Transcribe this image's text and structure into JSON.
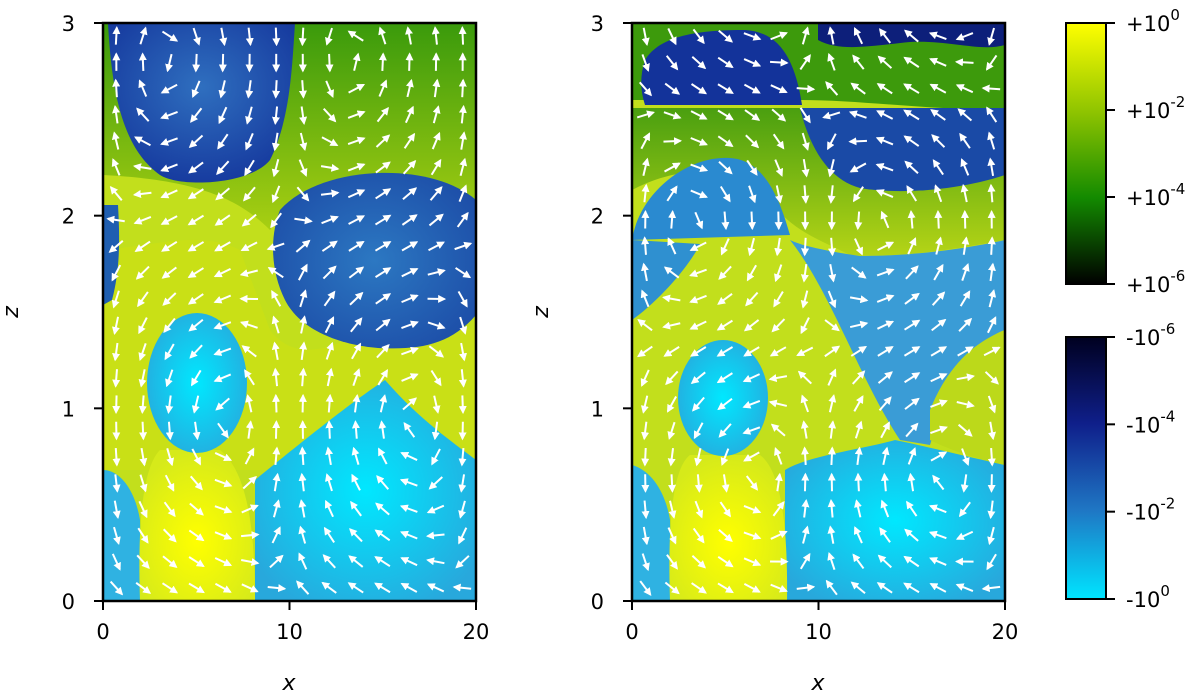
{
  "chart_data": [
    {
      "type": "heatmap",
      "title": "",
      "xlabel": "x",
      "ylabel": "z",
      "xlim": [
        0,
        20
      ],
      "ylim": [
        0,
        3
      ],
      "xticks": [
        0,
        10,
        20
      ],
      "yticks": [
        0,
        1,
        2,
        3
      ],
      "xtick_labels": [
        "0",
        "10",
        "20"
      ],
      "ytick_labels": [
        "0",
        "1",
        "2",
        "3"
      ],
      "grid": false,
      "cells": [
        {
          "x": 5,
          "z": 0.4,
          "sign": "positive",
          "level": 0
        },
        {
          "x": 15,
          "z": 0.45,
          "sign": "negative",
          "level": -1.5
        },
        {
          "x": 1,
          "z": 0.5,
          "sign": "negative",
          "level": -1.5
        },
        {
          "x": 5,
          "z": 1.15,
          "sign": "negative",
          "level": -1.5
        },
        {
          "x": 15,
          "z": 1.85,
          "sign": "negative",
          "level": -3.5
        },
        {
          "x": 5,
          "z": 2.7,
          "sign": "negative",
          "level": -3.5
        },
        {
          "x": 15,
          "z": 2.7,
          "sign": "positive",
          "level": -3
        },
        {
          "x": 5,
          "z": 1.75,
          "sign": "positive",
          "level": -1.5
        }
      ],
      "vectors": "flow-field (white arrows)"
    },
    {
      "type": "heatmap",
      "title": "",
      "xlabel": "x",
      "ylabel": "z",
      "xlim": [
        0,
        20
      ],
      "ylim": [
        0,
        3
      ],
      "xticks": [
        0,
        10,
        20
      ],
      "yticks": [
        0,
        1,
        2,
        3
      ],
      "xtick_labels": [
        "0",
        "10",
        "20"
      ],
      "ytick_labels": [
        "0",
        "1",
        "2",
        "3"
      ],
      "grid": false,
      "cells": [
        {
          "x": 5,
          "z": 0.4,
          "sign": "positive",
          "level": 0
        },
        {
          "x": 15,
          "z": 0.5,
          "sign": "negative",
          "level": -1.5
        },
        {
          "x": 5,
          "z": 1.1,
          "sign": "negative",
          "level": -1.5
        },
        {
          "x": 18,
          "z": 1.0,
          "sign": "positive",
          "level": -1.5
        },
        {
          "x": 15,
          "z": 1.6,
          "sign": "negative",
          "level": -2
        },
        {
          "x": 5,
          "z": 2.1,
          "sign": "negative",
          "level": -2
        },
        {
          "x": 15,
          "z": 2.4,
          "sign": "negative",
          "level": -3
        },
        {
          "x": 5,
          "z": 2.8,
          "sign": "negative",
          "level": -4
        },
        {
          "x": 16,
          "z": 2.95,
          "sign": "negative",
          "level": -5
        }
      ],
      "vectors": "flow-field (white arrows)"
    }
  ],
  "colorbars": {
    "positive": {
      "tick_labels": [
        "+10",
        "+10",
        "+10",
        "+10"
      ],
      "tick_exponents": [
        "0",
        "-2",
        "-4",
        "-6"
      ],
      "range": [
        1e-06,
        1
      ],
      "scale": "log",
      "colors": [
        "#000000",
        "#138a00",
        "#8fc400",
        "#ffff00"
      ]
    },
    "negative": {
      "tick_labels": [
        "-10",
        "-10",
        "-10",
        "-10"
      ],
      "tick_exponents": [
        "-6",
        "-4",
        "-2",
        "0"
      ],
      "range": [
        -1,
        -1e-06
      ],
      "scale": "symlog",
      "colors": [
        "#000020",
        "#0f1f8a",
        "#1f76c4",
        "#00e5ff"
      ]
    }
  }
}
